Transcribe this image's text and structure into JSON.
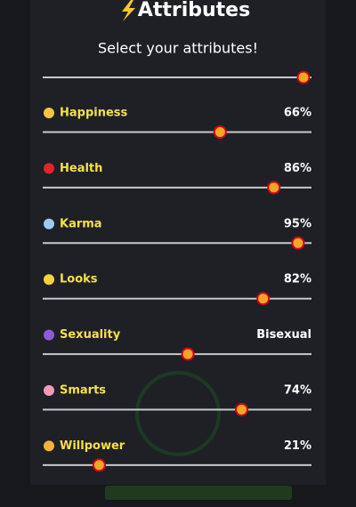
{
  "title": "Attributes",
  "subtitle": "Select your attributes!",
  "xlim": [
    0,
    100
  ],
  "top_slider_value": 97,
  "attributes": [
    {
      "name": "Happiness",
      "value": 66,
      "value_label": "66%",
      "color": "#f5c542"
    },
    {
      "name": "Health",
      "value": 86,
      "value_label": "86%",
      "color": "#e0242b"
    },
    {
      "name": "Karma",
      "value": 95,
      "value_label": "95%",
      "color": "#9ec9f0"
    },
    {
      "name": "Looks",
      "value": 82,
      "value_label": "82%",
      "color": "#f7d23a"
    },
    {
      "name": "Sexuality",
      "value": 54,
      "value_label": "Bisexual",
      "color": "#8e5bd8"
    },
    {
      "name": "Smarts",
      "value": 74,
      "value_label": "74%",
      "color": "#f29bb8"
    },
    {
      "name": "Willpower",
      "value": 21,
      "value_label": "21%",
      "color": "#f2b33d"
    }
  ]
}
